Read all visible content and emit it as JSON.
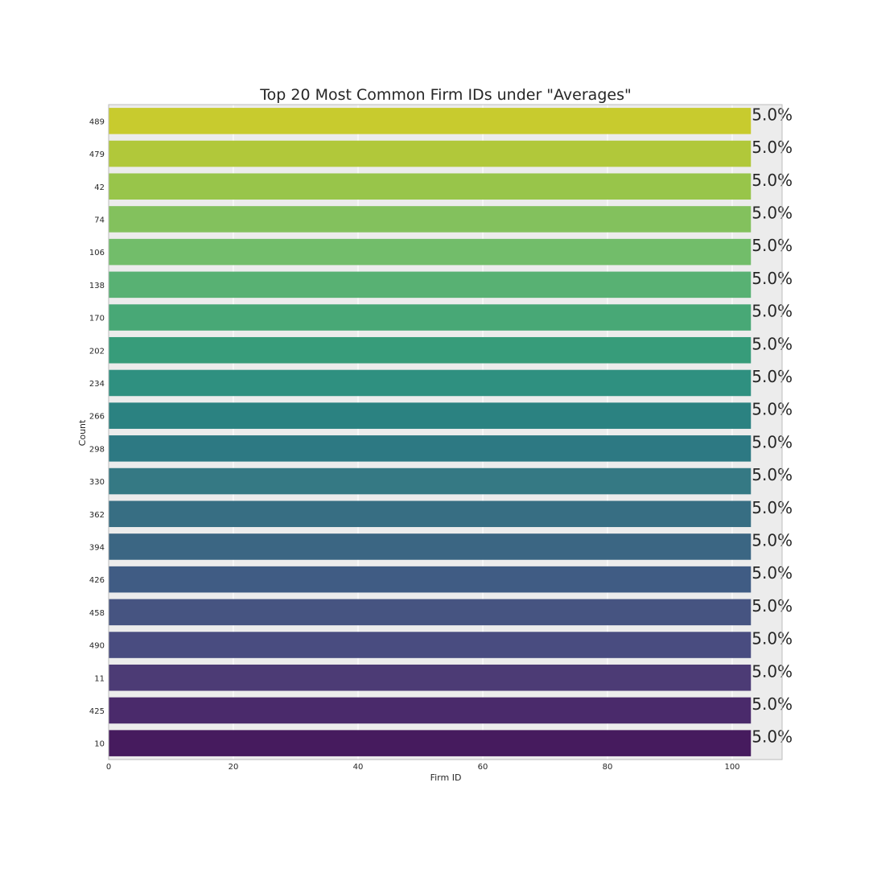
{
  "chart_data": {
    "type": "bar",
    "orientation": "horizontal",
    "title": "Top 20 Most Common Firm IDs under \"Averages\"",
    "xlabel": "Firm ID",
    "ylabel": "Count",
    "categories": [
      "489",
      "479",
      "42",
      "74",
      "106",
      "138",
      "170",
      "202",
      "234",
      "266",
      "298",
      "330",
      "362",
      "394",
      "426",
      "458",
      "490",
      "11",
      "425",
      "10"
    ],
    "values": [
      103,
      103,
      103,
      103,
      103,
      103,
      103,
      103,
      103,
      103,
      103,
      103,
      103,
      103,
      103,
      103,
      103,
      103,
      103,
      103
    ],
    "data_labels": [
      "5.0%",
      "5.0%",
      "5.0%",
      "5.0%",
      "5.0%",
      "5.0%",
      "5.0%",
      "5.0%",
      "5.0%",
      "5.0%",
      "5.0%",
      "5.0%",
      "5.0%",
      "5.0%",
      "5.0%",
      "5.0%",
      "5.0%",
      "5.0%",
      "5.0%",
      "5.0%"
    ],
    "xlim": [
      0,
      108
    ],
    "xticks": [
      0,
      20,
      40,
      60,
      80,
      100
    ],
    "grid": true,
    "colors": [
      "#c8cb2e",
      "#b1c83a",
      "#98c54a",
      "#83c15d",
      "#72bd6a",
      "#58b173",
      "#48a876",
      "#379c7a",
      "#2f9080",
      "#2b8281",
      "#2d7983",
      "#357984",
      "#376e83",
      "#3b6683",
      "#405c84",
      "#465481",
      "#494c80",
      "#4c3b75",
      "#4a2a6b",
      "#461b5e"
    ],
    "background": "#ececec"
  }
}
